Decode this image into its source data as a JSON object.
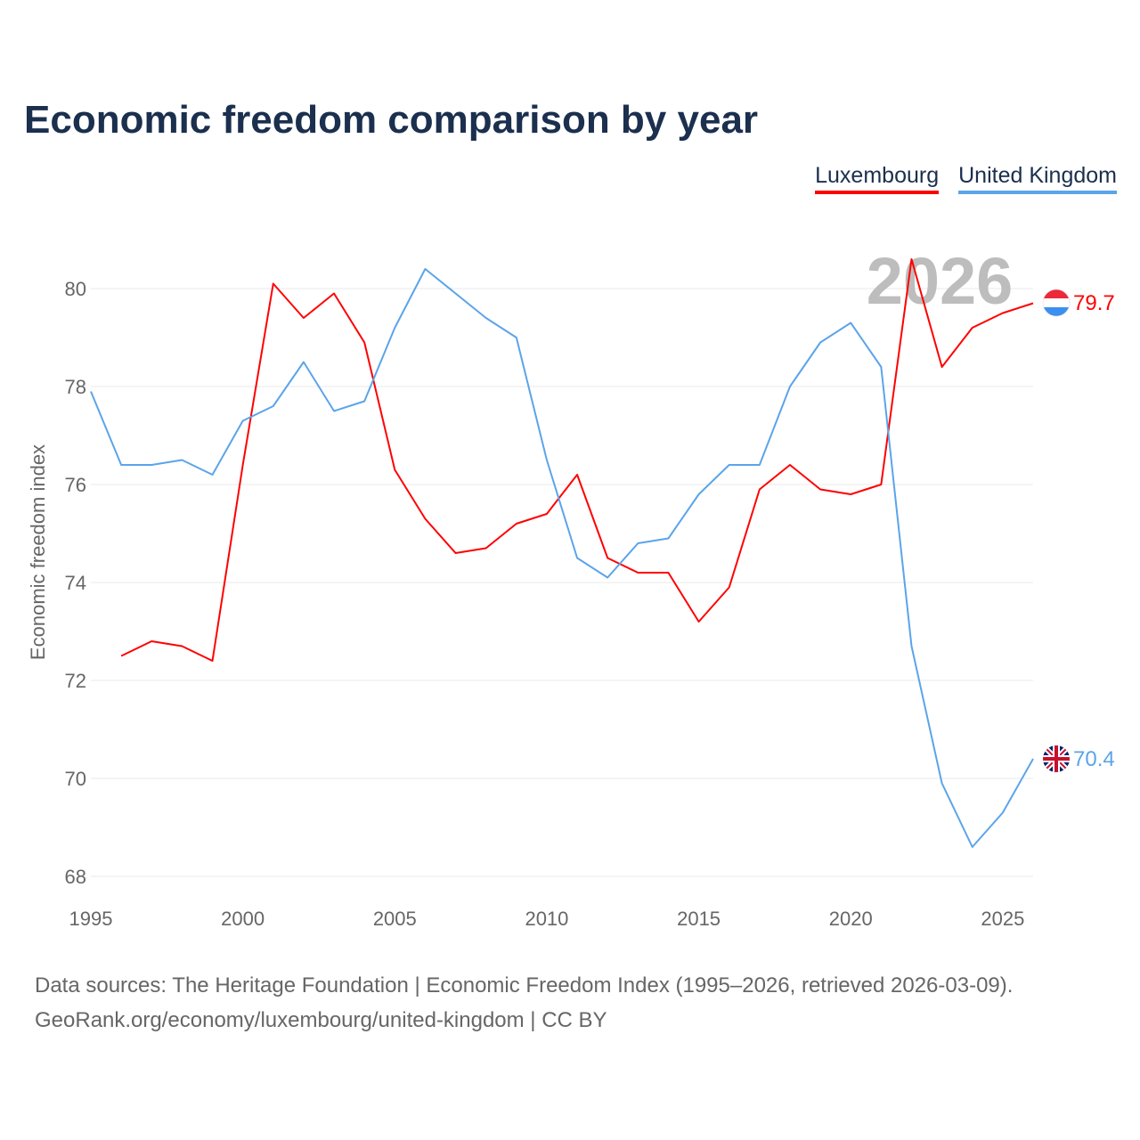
{
  "title": "Economic freedom comparison by year",
  "source_line1": "Data sources: The Heritage Foundation | Economic Freedom Index (1995–2026, retrieved 2026-03-09).",
  "source_line2": "GeoRank.org/economy/luxembourg/united-kingdom | CC BY",
  "chart_data": {
    "type": "line",
    "title": "Economic freedom comparison by year",
    "xlabel": "",
    "ylabel": "Economic freedom index",
    "xlim": [
      1995,
      2026
    ],
    "ylim": [
      68,
      81.5
    ],
    "xticks": [
      1995,
      2000,
      2005,
      2010,
      2015,
      2020,
      2025
    ],
    "yticks": [
      68,
      70,
      72,
      74,
      76,
      78,
      80
    ],
    "grid": true,
    "legend_position": "top-right",
    "current_year_label": "2026",
    "series": [
      {
        "name": "Luxembourg",
        "color": "#ff0000",
        "end_label": "79.7",
        "x": [
          1996,
          1997,
          1998,
          1999,
          2000,
          2001,
          2002,
          2003,
          2004,
          2005,
          2006,
          2007,
          2008,
          2009,
          2010,
          2011,
          2012,
          2013,
          2014,
          2015,
          2016,
          2017,
          2018,
          2019,
          2020,
          2021,
          2022,
          2023,
          2024,
          2025,
          2026
        ],
        "values": [
          72.5,
          72.8,
          72.7,
          72.4,
          76.4,
          80.1,
          79.4,
          79.9,
          78.9,
          76.3,
          75.3,
          74.6,
          74.7,
          75.2,
          75.4,
          76.2,
          74.5,
          74.2,
          74.2,
          73.2,
          73.9,
          75.9,
          76.4,
          75.9,
          75.8,
          76.0,
          80.6,
          78.4,
          79.2,
          79.5,
          79.7
        ]
      },
      {
        "name": "United Kingdom",
        "color": "#5ba4ea",
        "end_label": "70.4",
        "x": [
          1995,
          1996,
          1997,
          1998,
          1999,
          2000,
          2001,
          2002,
          2003,
          2004,
          2005,
          2006,
          2007,
          2008,
          2009,
          2010,
          2011,
          2012,
          2013,
          2014,
          2015,
          2016,
          2017,
          2018,
          2019,
          2020,
          2021,
          2022,
          2023,
          2024,
          2025,
          2026
        ],
        "values": [
          77.9,
          76.4,
          76.4,
          76.5,
          76.2,
          77.3,
          77.6,
          78.5,
          77.5,
          77.7,
          79.2,
          80.4,
          79.9,
          79.4,
          79.0,
          76.5,
          74.5,
          74.1,
          74.8,
          74.9,
          75.8,
          76.4,
          76.4,
          78.0,
          78.9,
          79.3,
          78.4,
          72.7,
          69.9,
          68.6,
          69.3,
          70.4
        ]
      }
    ]
  }
}
